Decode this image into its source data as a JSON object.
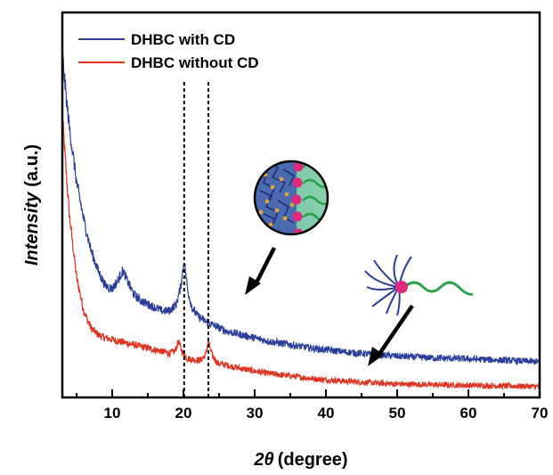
{
  "chart_data": {
    "type": "line",
    "xlabel_symbol": "2θ",
    "xlabel_unit": "(degree)",
    "ylabel_italic": "Intensity",
    "ylabel_unit": "(a.u.)",
    "xlim": [
      3,
      70
    ],
    "x_ticks": [
      10,
      20,
      30,
      40,
      50,
      60,
      70
    ],
    "x_minor_step": 5,
    "y_ticks_shown": false,
    "legend_position": "top-left",
    "grid": false,
    "reference_lines_x": [
      20.1,
      23.5
    ],
    "series": [
      {
        "name": "DHBC with CD",
        "color": "#2a3d9b",
        "x": [
          3.0,
          3.5,
          4.0,
          5.0,
          6.0,
          7.0,
          8.0,
          9.0,
          10.0,
          10.8,
          11.5,
          12.3,
          13.0,
          14.0,
          15.0,
          16.0,
          17.0,
          18.0,
          19.0,
          19.6,
          20.1,
          20.6,
          21.2,
          22.0,
          23.0,
          24.0,
          25.0,
          26.0,
          28.0,
          30.0,
          32.0,
          35.0,
          38.0,
          40.0,
          43.0,
          46.0,
          50.0,
          55.0,
          60.0,
          65.0,
          70.0
        ],
        "y": [
          100,
          88,
          78,
          62,
          51,
          42,
          36,
          31.5,
          30.5,
          33,
          36,
          32,
          29,
          27,
          26,
          25,
          24,
          24,
          26,
          31,
          39,
          30,
          25,
          22.5,
          21,
          20,
          19,
          18,
          17,
          16,
          15,
          14,
          13,
          12.5,
          11.8,
          11.2,
          10.6,
          10.1,
          9.8,
          9.4,
          9.0
        ]
      },
      {
        "name": "DHBC without CD",
        "color": "#e0301e",
        "x": [
          3.0,
          3.5,
          4.0,
          5.0,
          6.0,
          7.0,
          8.0,
          9.0,
          10.0,
          11.0,
          12.0,
          13.0,
          14.0,
          15.0,
          16.0,
          17.0,
          18.0,
          18.8,
          19.3,
          19.8,
          20.5,
          21.5,
          22.5,
          23.1,
          23.5,
          24.0,
          24.8,
          26.0,
          28.0,
          30.0,
          32.0,
          35.0,
          38.0,
          40.0,
          43.0,
          46.0,
          50.0,
          55.0,
          60.0,
          65.0,
          70.0
        ],
        "y": [
          82,
          66,
          52,
          34,
          24,
          19,
          17,
          16,
          15.5,
          15,
          14.5,
          14,
          13.5,
          13,
          12.5,
          12,
          11.5,
          12,
          15,
          12,
          10,
          9.5,
          9.5,
          11,
          15,
          11,
          8.5,
          8,
          7,
          6.2,
          5.5,
          4.8,
          4,
          3.6,
          3.2,
          2.8,
          2.4,
          2.2,
          2.0,
          1.8,
          1.7
        ]
      }
    ]
  }
}
